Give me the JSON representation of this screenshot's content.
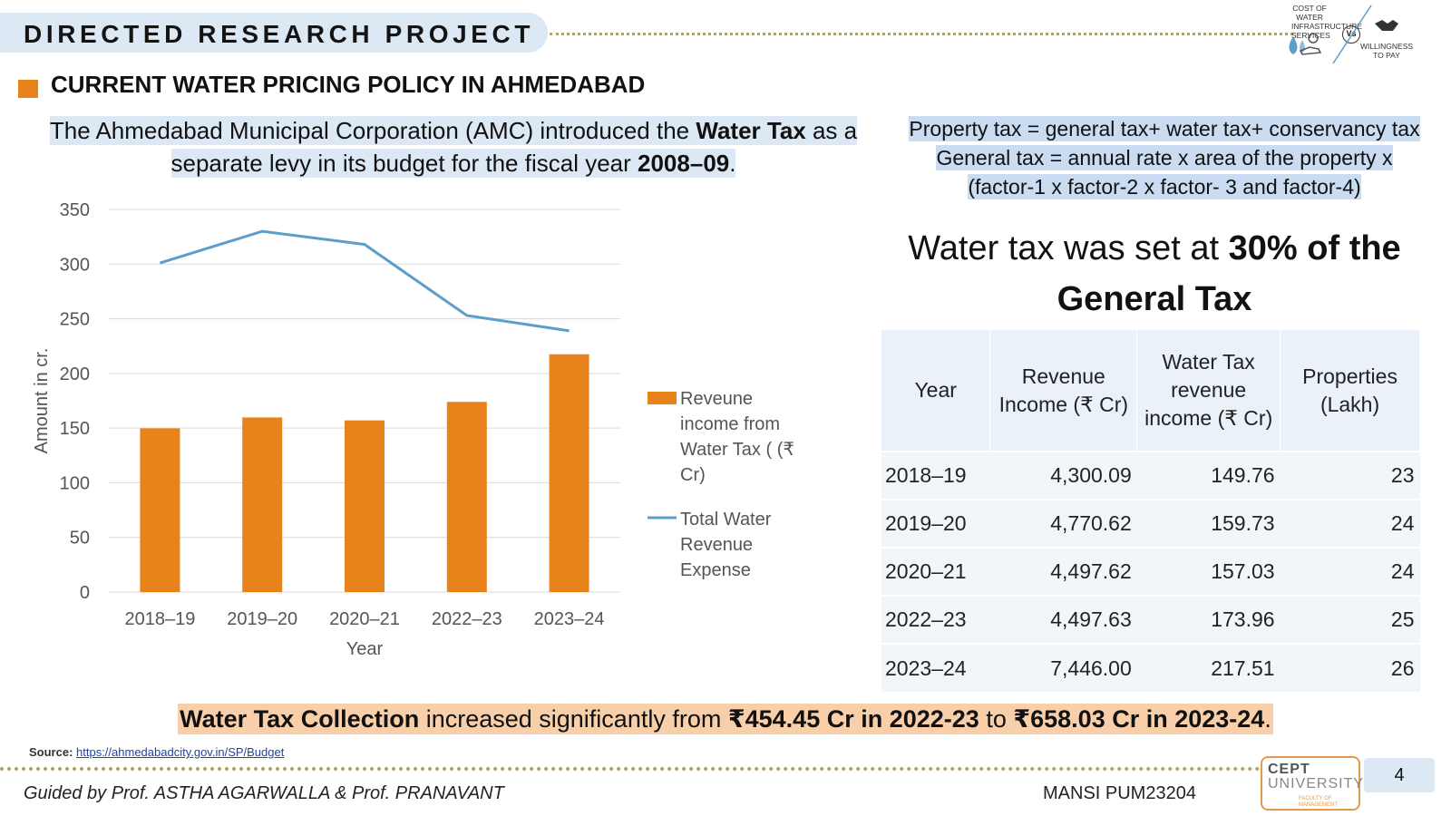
{
  "header": {
    "title": "DIRECTED RESEARCH PROJECT"
  },
  "logo": {
    "left_text": "COST OF WATER INFRASTRUCTURE SERVICES",
    "vs": "Vs",
    "right_text": "WILLINGNESS TO PAY",
    "icons": [
      "water-drop-icon",
      "hand-coin-icon",
      "handshake-icon"
    ]
  },
  "section": {
    "title": "CURRENT  WATER PRICING POLICY IN AHMEDABAD",
    "marker_color": "#e8821b"
  },
  "intro": {
    "p1": "The Ahmedabad Municipal Corporation (AMC) introduced the ",
    "b1": "Water Tax",
    "p2": " as a separate levy in its budget for the fiscal year ",
    "b2": "2008–09",
    "p3": "."
  },
  "formula": {
    "line1": "Property tax = general tax+ water tax+ conservancy tax",
    "line2": "General tax = annual rate x area of the property x",
    "line3": "(factor-1 x factor-2 x factor- 3 and factor-4)"
  },
  "statement": {
    "text": "Water tax was set at ",
    "bold": "30% of the General Tax"
  },
  "chart_data": {
    "type": "bar",
    "categories": [
      "2018–19",
      "2019–20",
      "2020–21",
      "2022–23",
      "2023–24"
    ],
    "series": [
      {
        "name": "Reveune income from Water Tax ( (₹ Cr)",
        "type": "bar",
        "color": "#e8821b",
        "values": [
          149.76,
          159.73,
          157.03,
          173.96,
          217.51
        ]
      },
      {
        "name": "Total Water Revenue Expense",
        "type": "line",
        "color": "#5b9ec9",
        "values": [
          301,
          330,
          318,
          253,
          239
        ]
      }
    ],
    "ylim": [
      0,
      350
    ],
    "yticks": [
      "0",
      "50",
      "100",
      "150",
      "200",
      "250",
      "300",
      "350"
    ],
    "xlabel": "Year",
    "ylabel": "Amount in cr.",
    "grid": true,
    "legend_position": "right",
    "legend_lines": [
      [
        "Reveune",
        "income from",
        "Water Tax ( (₹",
        "Cr)"
      ],
      [
        "Total Water",
        "Revenue",
        "Expense"
      ]
    ]
  },
  "table": {
    "headers": [
      "Year",
      "Revenue Income (₹ Cr)",
      "Water Tax revenue income (₹ Cr)",
      "Properties (Lakh)"
    ],
    "header_lines": [
      [
        "Year"
      ],
      [
        "Revenue",
        "Income (₹ Cr)"
      ],
      [
        "Water Tax",
        "revenue",
        "income (₹ Cr)"
      ],
      [
        "Properties",
        "(Lakh)"
      ]
    ],
    "rows": [
      [
        "2018–19",
        "4,300.09",
        "149.76",
        "23"
      ],
      [
        "2019–20",
        "4,770.62",
        "159.73",
        "24"
      ],
      [
        "2020–21",
        "4,497.62",
        "157.03",
        "24"
      ],
      [
        "2022–23",
        "4,497.63",
        "173.96",
        "25"
      ],
      [
        "2023–24",
        "7,446.00",
        "217.51",
        "26"
      ]
    ]
  },
  "collection": {
    "b1": "Water  Tax Collection",
    "t1": " increased significantly from ",
    "b2": "₹454.45 Cr in 2022-23",
    "t2": " to ",
    "b3": "₹658.03 Cr in 2023-24",
    "t3": "."
  },
  "source": {
    "label": "Source: ",
    "link": "https://ahmedabadcity.gov.in/SP/Budget"
  },
  "footer": {
    "guided": "Guided by Prof. ASTHA AGARWALLA  & Prof. PRANAVANT",
    "author": "MANSI  PUM23204",
    "cept_line1": "CEPT",
    "cept_line2": "UNIVERSITY",
    "cept_line3": "FACULTY OF MANAGEMENT",
    "page": "4"
  }
}
